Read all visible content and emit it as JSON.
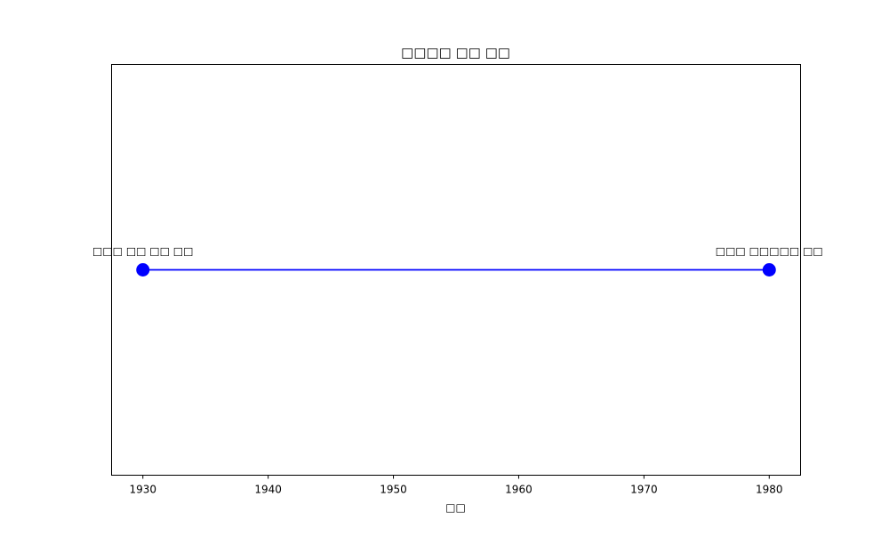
{
  "chart_data": {
    "type": "line",
    "title": "□□□□ □□ □□",
    "xlabel": "□□",
    "ylabel": "",
    "xlim": [
      1927.5,
      1982.5
    ],
    "ylim": [
      -1,
      1
    ],
    "xticks": [
      1930,
      1940,
      1950,
      1960,
      1970,
      1980
    ],
    "yticks": [],
    "grid": false,
    "legend": "none",
    "series": [
      {
        "x": [
          1930,
          1980
        ],
        "y": [
          0,
          0
        ],
        "color": "#0000ff",
        "marker": "circle"
      }
    ],
    "annotations": [
      {
        "x": 1930,
        "y": 0,
        "text": "□□□ □□ □□ □□"
      },
      {
        "x": 1980,
        "y": 0,
        "text": "□□□ □□□□□ □□"
      }
    ]
  }
}
